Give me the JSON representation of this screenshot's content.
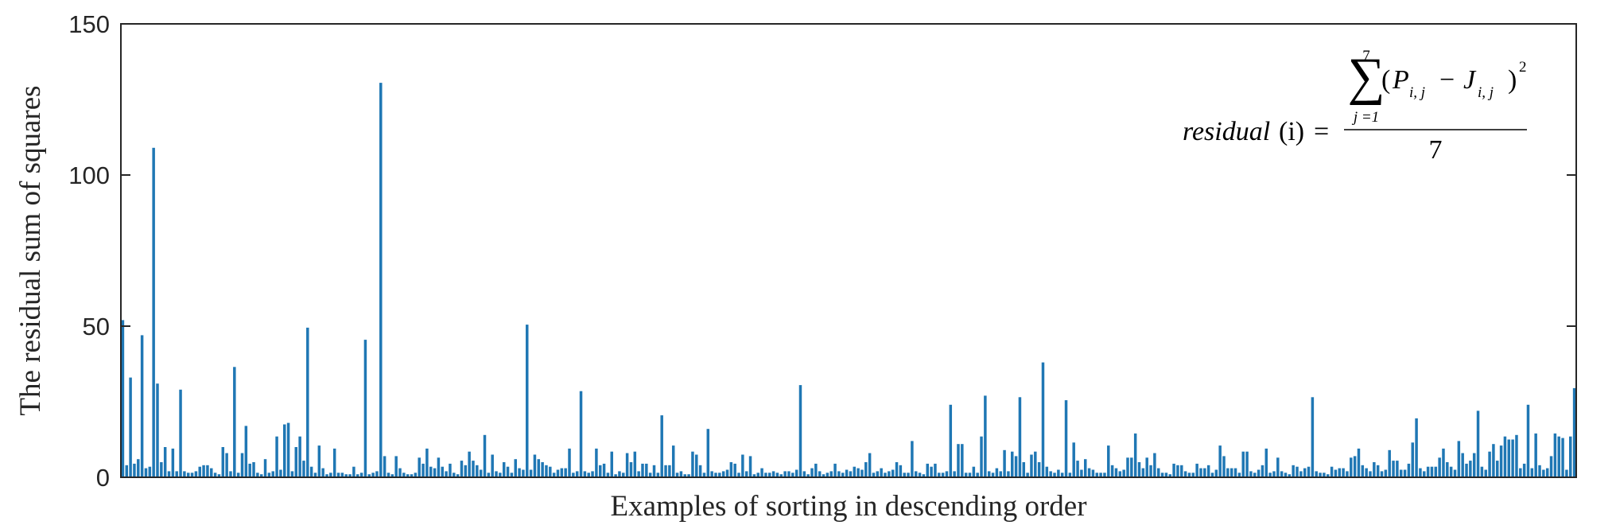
{
  "chart_data": {
    "type": "bar",
    "title": "",
    "xlabel": "Examples of sorting in descending order",
    "ylabel": "The residual sum of squares",
    "ylim": [
      0,
      150
    ],
    "yticks": [
      0,
      50,
      100,
      150
    ],
    "grid": false,
    "legend": "none",
    "color": "#1f77b4",
    "values": [
      52,
      4,
      33,
      4.5,
      6,
      47,
      3,
      3.5,
      109,
      31,
      5,
      10,
      2,
      9.5,
      2,
      29,
      2,
      1.5,
      1.5,
      2,
      3.5,
      4,
      4,
      3,
      1.5,
      1,
      10,
      8,
      2,
      36.5,
      1.5,
      8,
      17,
      4.5,
      5,
      1.5,
      1,
      6,
      1.5,
      2,
      13.5,
      2.5,
      17.5,
      18,
      2,
      10,
      13.5,
      5.5,
      49.5,
      3.5,
      1.5,
      10.5,
      3,
      1,
      1.5,
      9.5,
      1.5,
      1.5,
      1,
      1,
      3.5,
      1,
      1.5,
      45.5,
      1,
      1.5,
      2,
      130.5,
      7,
      1.5,
      1,
      7,
      3,
      1.5,
      1,
      1,
      1.5,
      6.5,
      4.5,
      9.5,
      3.5,
      3,
      6.5,
      3.5,
      2,
      4.5,
      1.5,
      1,
      5.5,
      4,
      8.5,
      5.5,
      4,
      2.5,
      14,
      1.5,
      7.5,
      2,
      1.5,
      5,
      3.5,
      1.5,
      6,
      3,
      2.5,
      50.5,
      2.5,
      7.5,
      6,
      5,
      4,
      3.5,
      1.5,
      2.5,
      3,
      3,
      9.5,
      1.5,
      2,
      28.5,
      2,
      1.5,
      2,
      9.5,
      4,
      4.5,
      1.5,
      8.5,
      1,
      2,
      1.5,
      8,
      5,
      8.5,
      2,
      4.5,
      4.5,
      1.5,
      4,
      1.5,
      20.5,
      4,
      4,
      10.5,
      1.5,
      2,
      1,
      1,
      8.5,
      7.5,
      4,
      1.5,
      16,
      2,
      1.5,
      1.5,
      2,
      2.5,
      5,
      4.5,
      1.5,
      7.5,
      2,
      7,
      1,
      1.5,
      3,
      1.5,
      1.5,
      2,
      1.5,
      1,
      2,
      2,
      1.5,
      2.5,
      30.5,
      2,
      1,
      3,
      4.5,
      2,
      1,
      1.5,
      2,
      4.5,
      2,
      1.5,
      2.5,
      2,
      3.5,
      3,
      2.5,
      5,
      8,
      1.5,
      2,
      3,
      1.5,
      2,
      2.5,
      5,
      4,
      1.5,
      1.5,
      12,
      2,
      1.5,
      1,
      4.5,
      3.5,
      4.5,
      1.5,
      1.5,
      2,
      24,
      2,
      11,
      11,
      1.5,
      1.5,
      3.5,
      1.5,
      13.5,
      27,
      2,
      1.5,
      3,
      2,
      9,
      2,
      8.5,
      7,
      26.5,
      5,
      1.5,
      7.5,
      8.5,
      5,
      38,
      3.5,
      2,
      1.5,
      2.5,
      1.5,
      25.5,
      1.5,
      11.5,
      5.5,
      2.5,
      6,
      3,
      2.5,
      1.5,
      1.5,
      1.5,
      10.5,
      4,
      3,
      2,
      2.5,
      6.5,
      6.5,
      14.5,
      5,
      3,
      6.5,
      4,
      8,
      3,
      1.5,
      1.5,
      1,
      4.5,
      4,
      4,
      2,
      1.5,
      1.5,
      4.5,
      3,
      3,
      4,
      1.5,
      2.5,
      10.5,
      7,
      3,
      3,
      3,
      1.5,
      8.5,
      8.5,
      2,
      1.5,
      2.5,
      4,
      9.5,
      1.5,
      2,
      6.5,
      2,
      1.5,
      1,
      4,
      3.5,
      2,
      3,
      3.5,
      26.5,
      2,
      1.5,
      1.5,
      1,
      3.5,
      2.5,
      3,
      3,
      2,
      6.5,
      7,
      9.5,
      4,
      3,
      2,
      5,
      4,
      2,
      2.5,
      9,
      5.5,
      5.5,
      2.5,
      2.5,
      4.5,
      11.5,
      19.5,
      3,
      2,
      3.5,
      3.5,
      3.5,
      6.5,
      9.5,
      5,
      3.5,
      2.5,
      12,
      8,
      4.5,
      5.5,
      8,
      22,
      3.5,
      2.5,
      8.5,
      11,
      5.5,
      10.5,
      13.5,
      12.5,
      12.5,
      14,
      3,
      4.5,
      24,
      3,
      14.5,
      4,
      2.5,
      3,
      7,
      14.5,
      13.5,
      13,
      2.5,
      13.5,
      29.5
    ]
  },
  "formula": {
    "lhs": "residual",
    "lhs_arg": "(i)",
    "equals": "=",
    "sum_upper": "7",
    "sum_lower": "j =1",
    "sum_symbol": "∑",
    "numerator_open": "(",
    "P": "P",
    "P_sub": "i, j",
    "minus": "−",
    "J": "J",
    "J_sub": "i, j",
    "numerator_close": ")",
    "power": "2",
    "denominator": "7"
  }
}
